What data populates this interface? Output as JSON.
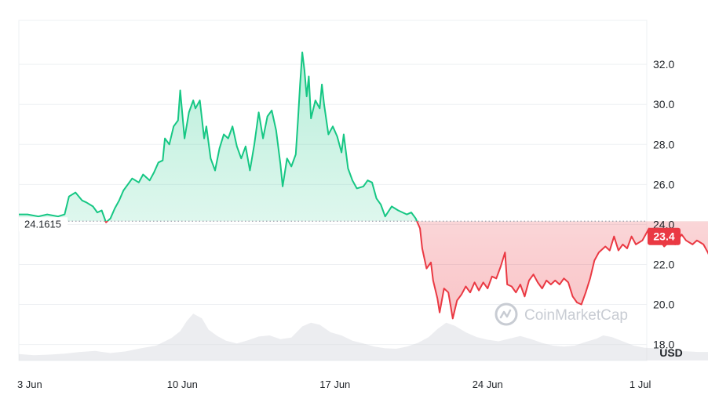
{
  "chart_data": {
    "type": "line",
    "y_unit": "USD",
    "ylim": [
      17.2,
      34.2
    ],
    "y_ticks": [
      "18.0",
      "20.0",
      "22.0",
      "24.0",
      "26.0",
      "28.0",
      "30.0",
      "32.0"
    ],
    "x_ticks": [
      "3 Jun",
      "10 Jun",
      "17 Jun",
      "24 Jun",
      "1 Jul"
    ],
    "x_range_days": [
      2.5,
      31.3
    ],
    "x_tick_days": [
      3,
      10,
      17,
      24,
      31
    ],
    "baseline": {
      "value": 24.1615,
      "label": "24.1615"
    },
    "last_value": {
      "value": 23.4,
      "label": "23.4"
    },
    "series": [
      {
        "color_above": "#16c784",
        "color_below": "#ea3943",
        "points": [
          [
            2.5,
            24.5
          ],
          [
            2.9,
            24.5
          ],
          [
            3.4,
            24.4
          ],
          [
            3.8,
            24.5
          ],
          [
            4.3,
            24.4
          ],
          [
            4.6,
            24.5
          ],
          [
            4.8,
            25.4
          ],
          [
            5.1,
            25.6
          ],
          [
            5.4,
            25.2
          ],
          [
            5.6,
            25.1
          ],
          [
            5.9,
            24.9
          ],
          [
            6.1,
            24.6
          ],
          [
            6.3,
            24.7
          ],
          [
            6.5,
            24.1
          ],
          [
            6.7,
            24.3
          ],
          [
            6.9,
            24.8
          ],
          [
            7.1,
            25.2
          ],
          [
            7.3,
            25.7
          ],
          [
            7.5,
            26.0
          ],
          [
            7.7,
            26.3
          ],
          [
            8.0,
            26.1
          ],
          [
            8.2,
            26.5
          ],
          [
            8.5,
            26.2
          ],
          [
            8.7,
            26.6
          ],
          [
            8.9,
            27.1
          ],
          [
            9.1,
            27.2
          ],
          [
            9.2,
            28.3
          ],
          [
            9.4,
            28.0
          ],
          [
            9.6,
            28.9
          ],
          [
            9.8,
            29.2
          ],
          [
            9.9,
            30.7
          ],
          [
            10.1,
            28.3
          ],
          [
            10.3,
            29.6
          ],
          [
            10.5,
            30.2
          ],
          [
            10.6,
            29.8
          ],
          [
            10.8,
            30.2
          ],
          [
            11.0,
            28.3
          ],
          [
            11.1,
            28.9
          ],
          [
            11.3,
            27.3
          ],
          [
            11.5,
            26.7
          ],
          [
            11.7,
            27.8
          ],
          [
            11.9,
            28.5
          ],
          [
            12.1,
            28.3
          ],
          [
            12.3,
            28.9
          ],
          [
            12.5,
            27.9
          ],
          [
            12.7,
            27.3
          ],
          [
            12.9,
            27.9
          ],
          [
            13.1,
            26.7
          ],
          [
            13.3,
            28.0
          ],
          [
            13.5,
            29.6
          ],
          [
            13.7,
            28.3
          ],
          [
            13.9,
            29.4
          ],
          [
            14.1,
            29.7
          ],
          [
            14.3,
            28.7
          ],
          [
            14.5,
            27.0
          ],
          [
            14.6,
            25.9
          ],
          [
            14.8,
            27.3
          ],
          [
            15.0,
            26.9
          ],
          [
            15.2,
            27.5
          ],
          [
            15.3,
            29.2
          ],
          [
            15.4,
            31.0
          ],
          [
            15.5,
            32.6
          ],
          [
            15.6,
            31.7
          ],
          [
            15.7,
            30.4
          ],
          [
            15.8,
            31.4
          ],
          [
            15.9,
            29.3
          ],
          [
            16.1,
            30.2
          ],
          [
            16.3,
            29.8
          ],
          [
            16.4,
            31.0
          ],
          [
            16.5,
            30.0
          ],
          [
            16.7,
            28.5
          ],
          [
            16.9,
            28.9
          ],
          [
            17.1,
            28.4
          ],
          [
            17.3,
            27.6
          ],
          [
            17.4,
            28.5
          ],
          [
            17.6,
            26.8
          ],
          [
            17.8,
            26.2
          ],
          [
            18.0,
            25.8
          ],
          [
            18.3,
            25.9
          ],
          [
            18.5,
            26.2
          ],
          [
            18.7,
            26.1
          ],
          [
            18.9,
            25.3
          ],
          [
            19.1,
            25.0
          ],
          [
            19.3,
            24.4
          ],
          [
            19.6,
            24.9
          ],
          [
            19.9,
            24.7
          ],
          [
            20.1,
            24.6
          ],
          [
            20.3,
            24.5
          ],
          [
            20.5,
            24.6
          ],
          [
            20.7,
            24.3
          ],
          [
            20.9,
            23.8
          ],
          [
            21.0,
            22.8
          ],
          [
            21.2,
            21.8
          ],
          [
            21.4,
            22.1
          ],
          [
            21.5,
            21.2
          ],
          [
            21.7,
            20.3
          ],
          [
            21.8,
            19.6
          ],
          [
            22.0,
            20.8
          ],
          [
            22.2,
            20.6
          ],
          [
            22.4,
            19.3
          ],
          [
            22.6,
            20.2
          ],
          [
            22.8,
            20.5
          ],
          [
            23.0,
            20.9
          ],
          [
            23.2,
            20.6
          ],
          [
            23.4,
            21.1
          ],
          [
            23.6,
            20.7
          ],
          [
            23.8,
            21.1
          ],
          [
            24.0,
            20.8
          ],
          [
            24.2,
            21.4
          ],
          [
            24.4,
            21.3
          ],
          [
            24.6,
            21.9
          ],
          [
            24.8,
            22.6
          ],
          [
            24.9,
            21.0
          ],
          [
            25.1,
            20.9
          ],
          [
            25.3,
            20.6
          ],
          [
            25.5,
            21.0
          ],
          [
            25.7,
            20.4
          ],
          [
            25.9,
            21.2
          ],
          [
            26.1,
            21.5
          ],
          [
            26.3,
            21.1
          ],
          [
            26.5,
            20.8
          ],
          [
            26.7,
            21.2
          ],
          [
            26.9,
            21.0
          ],
          [
            27.1,
            21.2
          ],
          [
            27.3,
            21.0
          ],
          [
            27.5,
            21.3
          ],
          [
            27.7,
            21.1
          ],
          [
            27.9,
            20.4
          ],
          [
            28.1,
            20.1
          ],
          [
            28.3,
            20.0
          ],
          [
            28.5,
            20.6
          ],
          [
            28.7,
            21.3
          ],
          [
            28.9,
            22.2
          ],
          [
            29.1,
            22.6
          ],
          [
            29.4,
            22.9
          ],
          [
            29.6,
            22.7
          ],
          [
            29.8,
            23.4
          ],
          [
            30.0,
            22.7
          ],
          [
            30.2,
            23.0
          ],
          [
            30.4,
            22.8
          ],
          [
            30.6,
            23.4
          ],
          [
            30.8,
            23.0
          ],
          [
            31.1,
            23.2
          ],
          [
            31.4,
            23.8
          ],
          [
            31.6,
            23.6
          ],
          [
            31.9,
            23.2
          ],
          [
            32.1,
            22.9
          ],
          [
            32.4,
            23.2
          ],
          [
            32.6,
            23.0
          ],
          [
            32.9,
            23.5
          ],
          [
            33.1,
            23.2
          ],
          [
            33.4,
            23.0
          ],
          [
            33.6,
            23.2
          ],
          [
            33.9,
            23.0
          ],
          [
            34.1,
            22.6
          ],
          [
            34.3,
            22.1
          ],
          [
            34.6,
            22.8
          ],
          [
            34.8,
            22.8
          ],
          [
            35.0,
            23.6
          ],
          [
            35.1,
            24.0
          ],
          [
            35.4,
            23.4
          ]
        ]
      },
      {
        "role": "volume",
        "color": "#d4d8de",
        "range": [
          0,
          10
        ],
        "points": [
          [
            2.5,
            1.2
          ],
          [
            3.2,
            1.0
          ],
          [
            3.9,
            1.1
          ],
          [
            4.6,
            1.3
          ],
          [
            5.3,
            1.6
          ],
          [
            6.0,
            1.8
          ],
          [
            6.7,
            1.4
          ],
          [
            7.4,
            1.7
          ],
          [
            8.1,
            2.3
          ],
          [
            8.8,
            2.8
          ],
          [
            9.5,
            4.2
          ],
          [
            9.9,
            5.5
          ],
          [
            10.2,
            7.4
          ],
          [
            10.5,
            8.8
          ],
          [
            10.9,
            7.9
          ],
          [
            11.2,
            5.8
          ],
          [
            11.6,
            4.6
          ],
          [
            12.0,
            3.7
          ],
          [
            12.5,
            3.2
          ],
          [
            13.0,
            3.8
          ],
          [
            13.5,
            4.5
          ],
          [
            14.0,
            4.7
          ],
          [
            14.5,
            4.0
          ],
          [
            15.0,
            4.3
          ],
          [
            15.5,
            6.4
          ],
          [
            15.9,
            7.1
          ],
          [
            16.3,
            6.7
          ],
          [
            16.8,
            5.3
          ],
          [
            17.3,
            4.7
          ],
          [
            17.8,
            3.7
          ],
          [
            18.3,
            3.2
          ],
          [
            18.8,
            2.6
          ],
          [
            19.3,
            2.3
          ],
          [
            19.8,
            2.2
          ],
          [
            20.3,
            2.6
          ],
          [
            20.8,
            3.3
          ],
          [
            21.3,
            4.4
          ],
          [
            21.7,
            5.9
          ],
          [
            22.1,
            7.1
          ],
          [
            22.5,
            6.5
          ],
          [
            23.0,
            5.3
          ],
          [
            23.5,
            4.4
          ],
          [
            24.0,
            3.9
          ],
          [
            24.5,
            3.6
          ],
          [
            25.0,
            4.1
          ],
          [
            25.5,
            4.6
          ],
          [
            26.0,
            4.0
          ],
          [
            26.5,
            3.3
          ],
          [
            27.0,
            2.8
          ],
          [
            27.5,
            2.6
          ],
          [
            28.0,
            2.8
          ],
          [
            28.5,
            3.5
          ],
          [
            29.0,
            4.1
          ],
          [
            29.3,
            4.7
          ],
          [
            29.7,
            4.4
          ],
          [
            30.2,
            3.6
          ],
          [
            30.7,
            2.8
          ],
          [
            31.2,
            2.4
          ],
          [
            31.7,
            2.3
          ],
          [
            32.2,
            2.0
          ],
          [
            32.7,
            1.8
          ],
          [
            33.2,
            1.7
          ],
          [
            33.7,
            1.6
          ],
          [
            34.2,
            1.6
          ],
          [
            34.7,
            2.1
          ],
          [
            35.4,
            2.3
          ]
        ]
      }
    ]
  },
  "watermark": {
    "text": "CoinMarketCap",
    "icon": "coinmarketcap-logo-icon"
  }
}
